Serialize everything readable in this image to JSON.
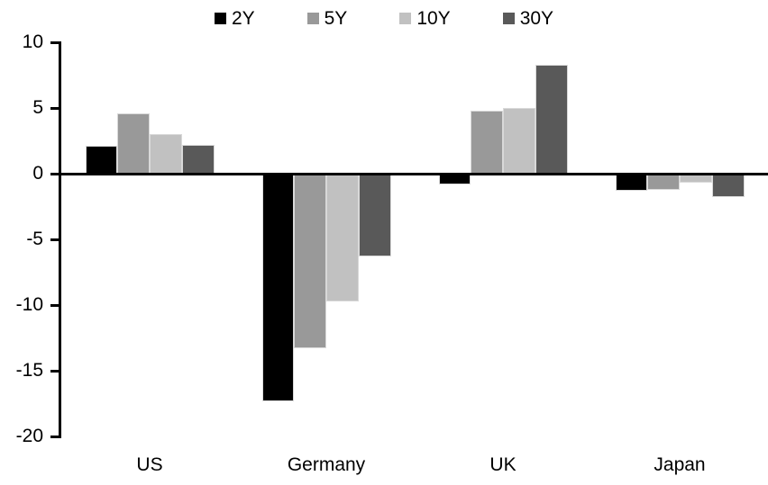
{
  "chart_data": {
    "type": "bar",
    "title": "",
    "xlabel": "",
    "ylabel": "",
    "categories": [
      "US",
      "Germany",
      "UK",
      "Japan"
    ],
    "series": [
      {
        "name": "2Y",
        "color": "#000000",
        "values": [
          2.1,
          -17.3,
          -0.8,
          -1.3
        ]
      },
      {
        "name": "5Y",
        "color": "#999999",
        "values": [
          4.6,
          -13.3,
          4.8,
          -1.2
        ]
      },
      {
        "name": "10Y",
        "color": "#c1c1c1",
        "values": [
          3.0,
          -9.7,
          5.0,
          -0.7
        ]
      },
      {
        "name": "30Y",
        "color": "#595959",
        "values": [
          2.2,
          -6.3,
          8.3,
          -1.8
        ]
      }
    ],
    "ylim": [
      -20,
      10
    ],
    "yticks": [
      10,
      5,
      0,
      -5,
      -10,
      -15,
      -20
    ],
    "grid": false,
    "legend_position": "top-center",
    "axis_color": "#000000",
    "background_color": "#ffffff"
  }
}
